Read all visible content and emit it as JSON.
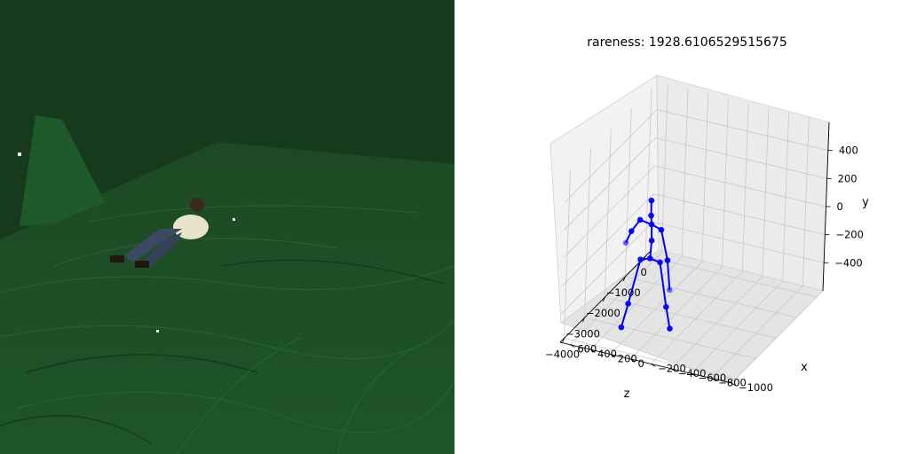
{
  "photo": {
    "description_icon": "person-lying-on-green-screen-floor-photo"
  },
  "chart_data": {
    "type": "scatter3d",
    "title": "rareness: 1928.6106529515675",
    "xlabel": "x",
    "ylabel": "y",
    "zlabel": "z",
    "xlim": [
      -1000,
      700
    ],
    "ylim": [
      -600,
      600
    ],
    "zlim": [
      -4200,
      300
    ],
    "x_ticks": [
      600,
      400,
      200,
      0,
      -200,
      -400,
      -600,
      -800,
      -1000
    ],
    "y_ticks": [
      400,
      200,
      0,
      -200,
      -400
    ],
    "z_ticks": [
      -4000,
      -3000,
      -2000,
      -1000,
      0
    ],
    "x_tick_labels": [
      "600",
      "400",
      "200",
      "0",
      "−200",
      "−400",
      "−600",
      "−800",
      "−1000"
    ],
    "y_tick_labels": [
      "400",
      "200",
      "0",
      "−200",
      "−400"
    ],
    "z_tick_labels": [
      "−4000",
      "−3000",
      "−2000",
      "−1000",
      "0"
    ],
    "marker_color": "#0000ff",
    "series": [
      {
        "name": "skeleton-joints",
        "x": [
          0,
          90,
          170,
          210,
          -90,
          -160,
          -200,
          0,
          10,
          20,
          30,
          150,
          270,
          340,
          -110,
          -230,
          -300
        ],
        "y": [
          0,
          -20,
          -330,
          -490,
          -20,
          -330,
          -480,
          120,
          230,
          290,
          390,
          220,
          90,
          -20,
          230,
          70,
          -100
        ],
        "z": [
          -3400,
          -3420,
          -3550,
          -3650,
          -3350,
          -3320,
          -3300,
          -3350,
          -3330,
          -3320,
          -3280,
          -3200,
          -3000,
          -2900,
          -3450,
          -3700,
          -3900
        ]
      }
    ],
    "bones": [
      [
        0,
        1
      ],
      [
        1,
        2
      ],
      [
        2,
        3
      ],
      [
        0,
        4
      ],
      [
        4,
        5
      ],
      [
        5,
        6
      ],
      [
        0,
        7
      ],
      [
        7,
        8
      ],
      [
        8,
        9
      ],
      [
        9,
        10
      ],
      [
        8,
        11
      ],
      [
        11,
        12
      ],
      [
        12,
        13
      ],
      [
        8,
        14
      ],
      [
        14,
        15
      ],
      [
        15,
        16
      ]
    ]
  }
}
